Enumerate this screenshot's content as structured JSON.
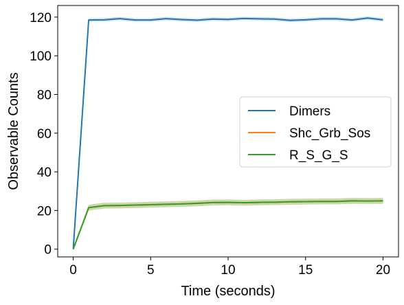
{
  "chart_data": {
    "type": "line",
    "xlabel": "Time (seconds)",
    "ylabel": "Observable Counts",
    "xlim": [
      -1,
      21
    ],
    "ylim": [
      -4,
      126
    ],
    "xticks": [
      0,
      5,
      10,
      15,
      20
    ],
    "yticks": [
      0,
      20,
      40,
      60,
      80,
      100,
      120
    ],
    "legend_position": "center-right",
    "x": [
      0,
      1,
      2,
      3,
      4,
      5,
      6,
      7,
      8,
      9,
      10,
      11,
      12,
      13,
      14,
      15,
      16,
      17,
      18,
      19,
      20
    ],
    "series": [
      {
        "name": "Dimers",
        "color": "#1f77b4",
        "values": [
          0,
          118.5,
          118.6,
          119.2,
          118.5,
          118.5,
          119.2,
          118.7,
          118.4,
          119.0,
          118.8,
          119.3,
          119.1,
          119.0,
          118.3,
          118.6,
          119.1,
          119.1,
          118.5,
          119.5,
          118.6
        ],
        "band": 0.9
      },
      {
        "name": "Shc_Grb_Sos",
        "color": "#ff7f0e",
        "values": [
          0,
          21.5,
          22.5,
          22.6,
          22.8,
          23.0,
          23.2,
          23.4,
          23.7,
          24.1,
          24.2,
          24.0,
          24.2,
          24.3,
          24.5,
          24.6,
          24.7,
          24.7,
          25.0,
          24.9,
          25.0
        ],
        "band": 1.5
      },
      {
        "name": "R_S_G_S",
        "color": "#2ca02c",
        "values": [
          0,
          21.5,
          22.5,
          22.6,
          22.8,
          23.0,
          23.2,
          23.4,
          23.7,
          24.1,
          24.2,
          24.0,
          24.2,
          24.3,
          24.5,
          24.6,
          24.7,
          24.7,
          25.0,
          24.9,
          25.0
        ],
        "band": 1.5
      }
    ]
  }
}
